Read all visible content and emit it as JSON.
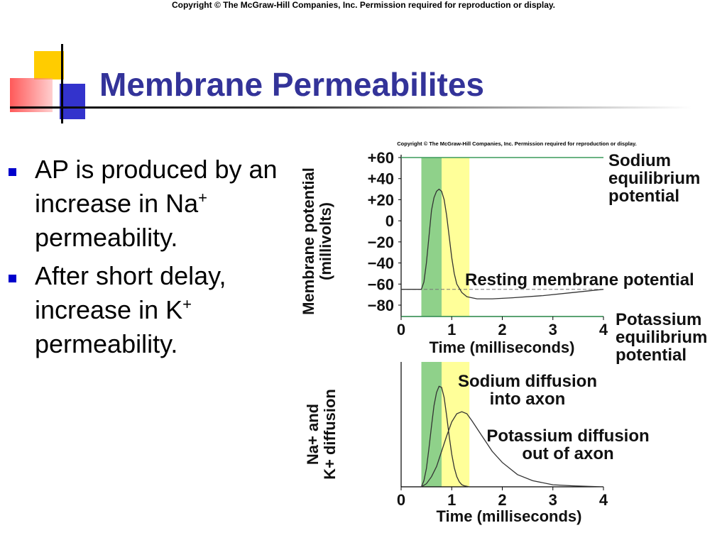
{
  "slide": {
    "copyright": "Copyright © The McGraw-Hill Companies, Inc. Permission required for reproduction or display.",
    "title": "Membrane Permeabilites",
    "bullets": [
      {
        "pre": "AP is produced by an increase in Na",
        "sup": "+",
        "post": " permeability."
      },
      {
        "pre": "After short delay, increase in K",
        "sup": "+",
        "post": " permeability."
      }
    ],
    "figure_copyright": "Copyright © The McGraw-Hill Companies, Inc. Permission required for reproduction or display.",
    "colors": {
      "title": "#333399",
      "bullet": "#0000cc",
      "sodium_band": "#8fd18a",
      "potassium_band": "#ffff99",
      "equilibrium_line": "#3a9a5a"
    }
  },
  "chart_data": [
    {
      "type": "line",
      "ylabel_line1": "Membrane potential",
      "ylabel_line2": "(millivolts)",
      "xlabel": "Time (milliseconds)",
      "xlim": [
        0,
        4
      ],
      "ylim": [
        -90,
        62
      ],
      "xticks": [
        0,
        1,
        2,
        3,
        4
      ],
      "yticks": [
        60,
        40,
        20,
        0,
        -20,
        -40,
        -60,
        -80
      ],
      "ytick_labels": [
        "+60",
        "+40",
        "+20",
        "0",
        "−20",
        "−40",
        "−60",
        "−80"
      ],
      "xtick_labels": [
        "0",
        "1",
        "2",
        "3",
        "4"
      ],
      "bands": [
        {
          "name": "sodium",
          "x0": 0.4,
          "x1": 0.8
        },
        {
          "name": "potassium",
          "x0": 0.8,
          "x1": 1.35
        }
      ],
      "reference_lines": [
        {
          "y": 60,
          "label_lines": [
            "Sodium",
            "equilibrium",
            "potential"
          ]
        },
        {
          "y": -65,
          "label_lines": [
            "Resting membrane potential"
          ],
          "dashed": true
        },
        {
          "y": -90,
          "label_lines": [
            "Potassium",
            "equilibrium",
            "potential"
          ]
        }
      ],
      "series": [
        {
          "x": [
            0,
            0.4,
            0.45,
            0.5,
            0.55,
            0.6,
            0.65,
            0.7,
            0.75,
            0.8,
            0.85,
            0.9,
            0.95,
            1.0,
            1.05,
            1.1,
            1.2,
            1.3,
            1.5,
            1.8,
            2.2,
            2.8,
            3.4,
            4.0
          ],
          "y": [
            -65,
            -65,
            -58,
            -40,
            -15,
            10,
            22,
            28,
            30,
            28,
            20,
            5,
            -15,
            -35,
            -50,
            -60,
            -68,
            -72,
            -74,
            -74,
            -73,
            -71,
            -68,
            -65
          ]
        }
      ]
    },
    {
      "type": "line",
      "ylabel_line1": "Na+ and",
      "ylabel_line2": "K+ diffusion",
      "xlabel": "Time (milliseconds)",
      "xlim": [
        0,
        4
      ],
      "ylim": [
        0,
        1
      ],
      "xticks": [
        0,
        1,
        2,
        3,
        4
      ],
      "xtick_labels": [
        "0",
        "1",
        "2",
        "3",
        "4"
      ],
      "bands": [
        {
          "name": "sodium",
          "x0": 0.4,
          "x1": 0.8
        },
        {
          "name": "potassium",
          "x0": 0.8,
          "x1": 1.35
        }
      ],
      "series": [
        {
          "name": "Sodium diffusion into axon",
          "label_lines": [
            "Sodium diffusion",
            "into axon"
          ],
          "x": [
            0.4,
            0.45,
            0.5,
            0.55,
            0.6,
            0.65,
            0.7,
            0.75,
            0.8,
            0.85,
            0.9,
            0.95,
            1.0,
            1.05,
            1.1,
            1.15,
            1.2,
            1.25,
            1.3,
            1.35
          ],
          "y": [
            0,
            0.06,
            0.18,
            0.38,
            0.6,
            0.8,
            0.93,
            0.99,
            0.98,
            0.88,
            0.7,
            0.5,
            0.32,
            0.19,
            0.1,
            0.05,
            0.02,
            0.01,
            0.005,
            0
          ]
        },
        {
          "name": "Potassium diffusion out of axon",
          "label_lines": [
            "Potassium diffusion",
            "out of axon"
          ],
          "x": [
            0.4,
            0.5,
            0.6,
            0.7,
            0.8,
            0.9,
            1.0,
            1.1,
            1.2,
            1.3,
            1.4,
            1.6,
            1.8,
            2.0,
            2.3,
            2.6,
            3.0,
            3.4,
            4.0
          ],
          "y": [
            0,
            0.03,
            0.1,
            0.2,
            0.35,
            0.5,
            0.64,
            0.72,
            0.74,
            0.72,
            0.65,
            0.5,
            0.35,
            0.24,
            0.12,
            0.06,
            0.02,
            0.01,
            0
          ]
        }
      ]
    }
  ]
}
